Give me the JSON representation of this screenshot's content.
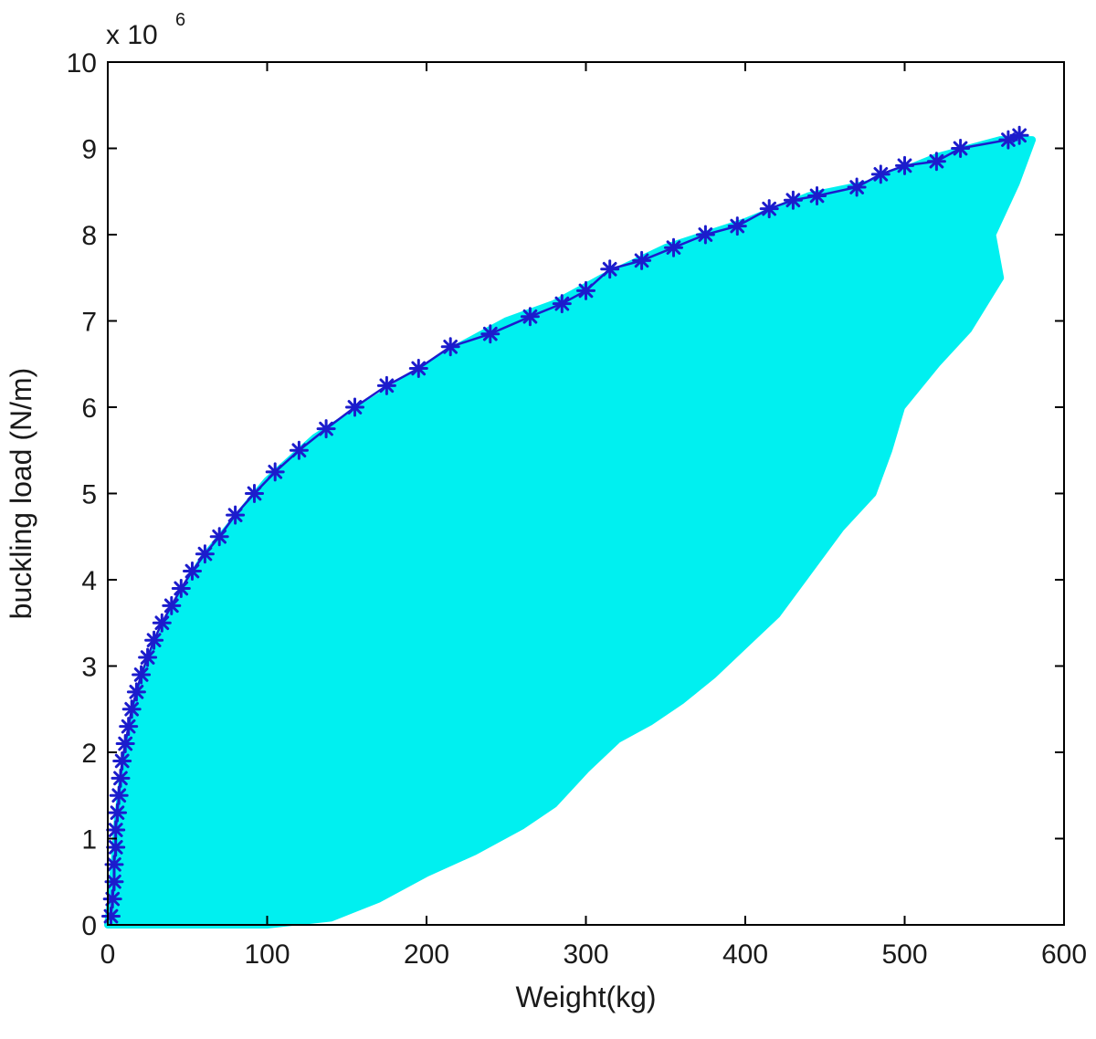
{
  "chart_data": {
    "type": "scatter",
    "xlabel": "Weight(kg)",
    "ylabel": "buckling load (N/m)",
    "y_scale_note": {
      "prefix": "x 10",
      "exponent": "6"
    },
    "xlim": [
      0,
      600
    ],
    "ylim": [
      0,
      10
    ],
    "xticks": [
      "0",
      "100",
      "200",
      "300",
      "400",
      "500",
      "600"
    ],
    "yticks": [
      "0",
      "1",
      "2",
      "3",
      "4",
      "5",
      "6",
      "7",
      "8",
      "9",
      "10"
    ],
    "grid": false,
    "marker": "*",
    "series": [
      {
        "role": "all-designs",
        "color": "#00f0f0",
        "region_outline_upper": [
          [
            0,
            0
          ],
          [
            2,
            0.3
          ],
          [
            4,
            0.7
          ],
          [
            6,
            1.2
          ],
          [
            10,
            1.8
          ],
          [
            15,
            2.3
          ],
          [
            22,
            2.8
          ],
          [
            30,
            3.2
          ],
          [
            45,
            3.8
          ],
          [
            60,
            4.25
          ],
          [
            80,
            4.7
          ],
          [
            100,
            5.15
          ],
          [
            130,
            5.65
          ],
          [
            160,
            6.0
          ],
          [
            190,
            6.35
          ],
          [
            220,
            6.7
          ],
          [
            250,
            7.0
          ],
          [
            280,
            7.2
          ],
          [
            310,
            7.5
          ],
          [
            350,
            7.85
          ],
          [
            400,
            8.15
          ],
          [
            440,
            8.45
          ],
          [
            480,
            8.6
          ],
          [
            520,
            8.9
          ],
          [
            560,
            9.1
          ],
          [
            580,
            9.1
          ]
        ],
        "region_outline_right": [
          [
            580,
            9.1
          ],
          [
            570,
            8.6
          ],
          [
            555,
            8.0
          ],
          [
            560,
            7.5
          ],
          [
            540,
            6.9
          ],
          [
            520,
            6.5
          ],
          [
            498,
            6.0
          ],
          [
            490,
            5.5
          ],
          [
            480,
            5.0
          ],
          [
            460,
            4.6
          ],
          [
            440,
            4.1
          ],
          [
            420,
            3.6
          ],
          [
            400,
            3.25
          ],
          [
            380,
            2.9
          ],
          [
            360,
            2.6
          ],
          [
            340,
            2.35
          ],
          [
            320,
            2.15
          ],
          [
            300,
            1.8
          ],
          [
            280,
            1.4
          ],
          [
            260,
            1.15
          ],
          [
            230,
            0.85
          ],
          [
            200,
            0.6
          ],
          [
            170,
            0.3
          ],
          [
            140,
            0.08
          ],
          [
            100,
            0.0
          ],
          [
            0,
            0.0
          ]
        ]
      },
      {
        "role": "pareto-front",
        "color": "#1c1ccc",
        "points": [
          [
            2,
            0.1
          ],
          [
            3,
            0.3
          ],
          [
            4,
            0.5
          ],
          [
            4,
            0.7
          ],
          [
            5,
            0.9
          ],
          [
            5,
            1.1
          ],
          [
            6,
            1.3
          ],
          [
            7,
            1.5
          ],
          [
            8,
            1.7
          ],
          [
            9,
            1.9
          ],
          [
            11,
            2.1
          ],
          [
            13,
            2.3
          ],
          [
            15,
            2.5
          ],
          [
            18,
            2.7
          ],
          [
            21,
            2.9
          ],
          [
            25,
            3.1
          ],
          [
            29,
            3.3
          ],
          [
            34,
            3.5
          ],
          [
            40,
            3.7
          ],
          [
            46,
            3.9
          ],
          [
            53,
            4.1
          ],
          [
            61,
            4.3
          ],
          [
            70,
            4.5
          ],
          [
            80,
            4.75
          ],
          [
            92,
            5.0
          ],
          [
            105,
            5.25
          ],
          [
            120,
            5.5
          ],
          [
            137,
            5.75
          ],
          [
            155,
            6.0
          ],
          [
            175,
            6.25
          ],
          [
            195,
            6.45
          ],
          [
            215,
            6.7
          ],
          [
            240,
            6.85
          ],
          [
            265,
            7.05
          ],
          [
            285,
            7.2
          ],
          [
            300,
            7.35
          ],
          [
            315,
            7.6
          ],
          [
            335,
            7.7
          ],
          [
            355,
            7.85
          ],
          [
            375,
            8.0
          ],
          [
            395,
            8.1
          ],
          [
            415,
            8.3
          ],
          [
            430,
            8.4
          ],
          [
            445,
            8.45
          ],
          [
            470,
            8.55
          ],
          [
            485,
            8.7
          ],
          [
            500,
            8.8
          ],
          [
            520,
            8.85
          ],
          [
            535,
            9.0
          ],
          [
            565,
            9.1
          ],
          [
            572,
            9.15
          ]
        ]
      }
    ]
  }
}
